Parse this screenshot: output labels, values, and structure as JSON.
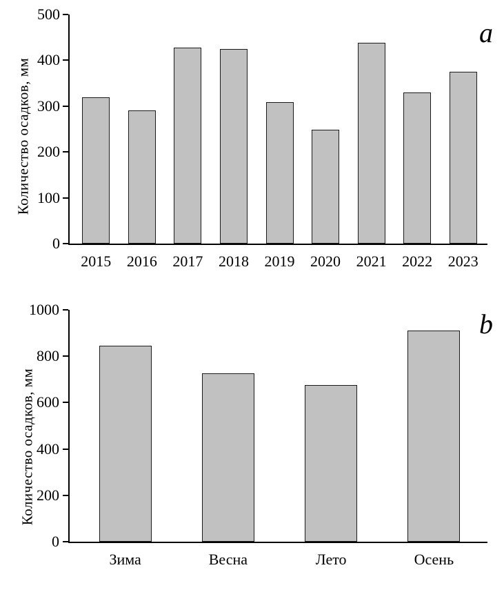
{
  "figure": {
    "background": "#ffffff",
    "text_color": "#000000"
  },
  "chart_data": [
    {
      "type": "bar",
      "panel_label": "a",
      "ylabel": "Количество осадков, мм",
      "categories": [
        "2015",
        "2016",
        "2017",
        "2018",
        "2019",
        "2020",
        "2021",
        "2022",
        "2023"
      ],
      "values": [
        320,
        290,
        427,
        424,
        308,
        248,
        438,
        330,
        375
      ],
      "ylim": [
        0,
        500
      ],
      "yticks": [
        0,
        100,
        200,
        300,
        400,
        500
      ],
      "grid": false,
      "legend": "none",
      "bar_color": "#c1c1c1",
      "bar_border_color": "#1a1a1a",
      "axis_color": "#000000"
    },
    {
      "type": "bar",
      "panel_label": "b",
      "ylabel": "Количество осадков, мм",
      "categories": [
        "Зима",
        "Весна",
        "Лето",
        "Осень"
      ],
      "values": [
        845,
        725,
        675,
        910
      ],
      "ylim": [
        0,
        1000
      ],
      "yticks": [
        0,
        200,
        400,
        600,
        800,
        1000
      ],
      "grid": false,
      "legend": "none",
      "bar_color": "#c1c1c1",
      "bar_border_color": "#1a1a1a",
      "axis_color": "#000000"
    }
  ]
}
